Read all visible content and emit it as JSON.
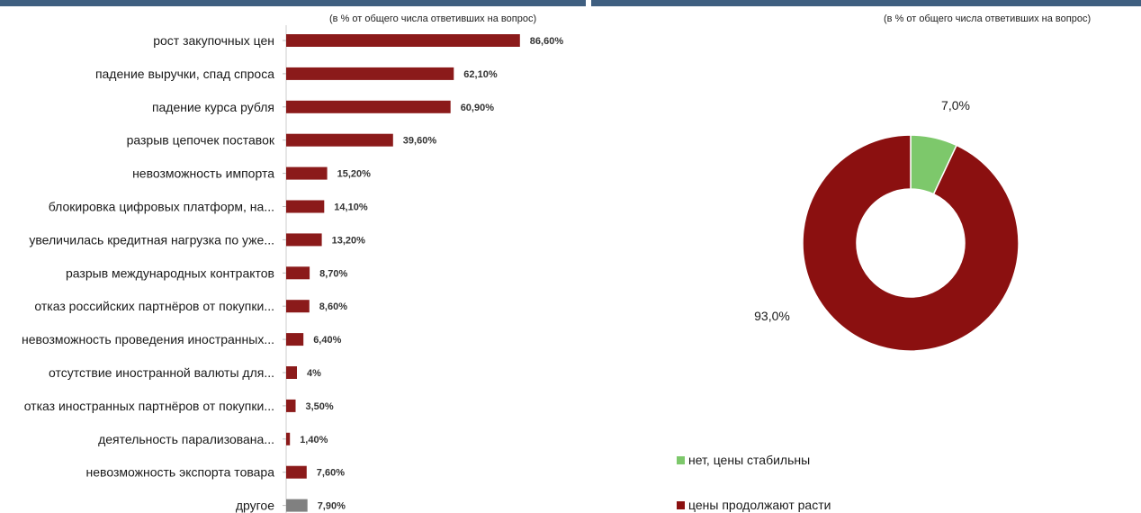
{
  "chart_data": [
    {
      "type": "bar",
      "orientation": "horizontal",
      "subtitle": "(в % от  общего числа ответивших на вопрос)",
      "categories": [
        "рост закупочных цен",
        "падение выручки, спад спроса",
        "падение курса рубля",
        "разрыв цепочек поставок",
        "невозможность импорта",
        "блокировка цифровых платформ, на...",
        "увеличилась кредитная нагрузка по уже...",
        "разрыв международных контрактов",
        "отказ российских партнёров от покупки...",
        "невозможность проведения иностранных...",
        "отсутствие иностранной валюты для...",
        "отказ иностранных партнёров от покупки...",
        "деятельность парализована...",
        "невозможность экспорта товара",
        "другое"
      ],
      "values": [
        86.6,
        62.1,
        60.9,
        39.6,
        15.2,
        14.1,
        13.2,
        8.7,
        8.6,
        6.4,
        4,
        3.5,
        1.4,
        7.6,
        7.9
      ],
      "data_labels": [
        "86,60%",
        "62,10%",
        "60,90%",
        "39,60%",
        "15,20%",
        "14,10%",
        "13,20%",
        "8,70%",
        "8,60%",
        "6,40%",
        "4%",
        "3,50%",
        "1,40%",
        "7,60%",
        "7,90%"
      ],
      "bar_colors": [
        "#8b1a1a",
        "#8b1a1a",
        "#8b1a1a",
        "#8b1a1a",
        "#8b1a1a",
        "#8b1a1a",
        "#8b1a1a",
        "#8b1a1a",
        "#8b1a1a",
        "#8b1a1a",
        "#8b1a1a",
        "#8b1a1a",
        "#8b1a1a",
        "#8b1a1a",
        "#808080"
      ],
      "xlim": [
        0,
        100
      ],
      "grid": false
    },
    {
      "type": "pie",
      "subtype": "donut",
      "subtitle": "(в % от  общего числа ответивших на вопрос)",
      "slices": [
        {
          "label": "нет, цены стабильны",
          "value": 7.0,
          "data_label": "7,0%",
          "color": "#7dc86b"
        },
        {
          "label": "цены продолжают расти",
          "value": 93.0,
          "data_label": "93,0%",
          "color": "#8b1010"
        }
      ],
      "legend_position": "bottom-left"
    }
  ]
}
